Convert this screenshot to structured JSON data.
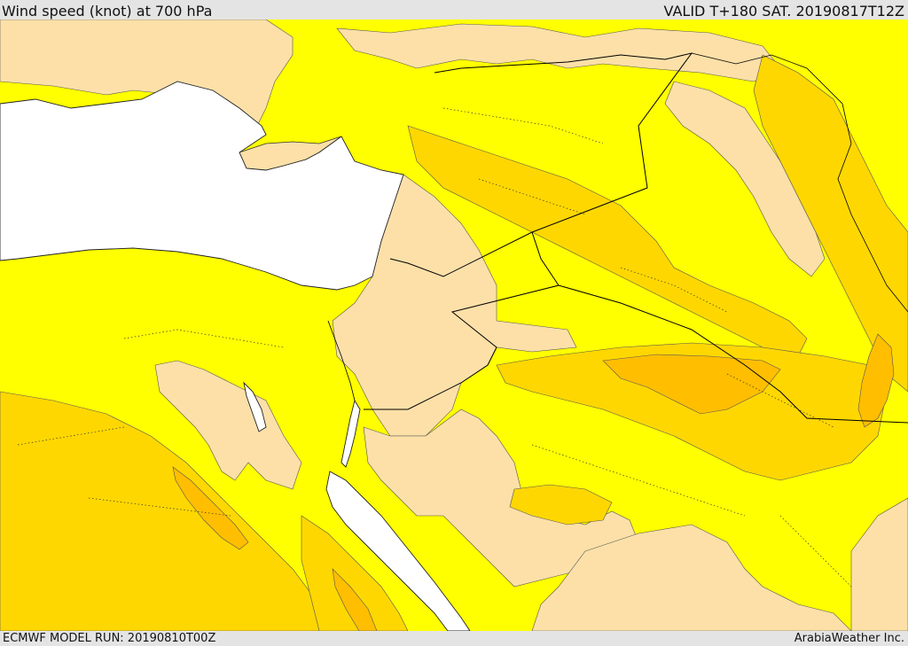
{
  "header": {
    "title": "Wind speed (knot) at 700 hPa",
    "valid": "VALID T+180 SAT. 20190817T12Z"
  },
  "footer": {
    "model_run": "ECMWF MODEL RUN: 20190810T00Z",
    "credit": "ArabiaWeather Inc."
  },
  "colors": {
    "sea": "#ffffff",
    "calm": "#fde0a8",
    "band_10_15": "#ffff00",
    "band_15_20": "#ffd700",
    "band_20_25": "#ffbe00",
    "band_25_30": "#ff9f00",
    "coastline": "#000000",
    "frame_background": "#e4e4e4"
  },
  "map": {
    "region": "Eastern Mediterranean, Levant, Iraq, Red Sea and Arabian Peninsula",
    "variable": "wind speed",
    "level": "700 hPa",
    "units": "knot"
  }
}
